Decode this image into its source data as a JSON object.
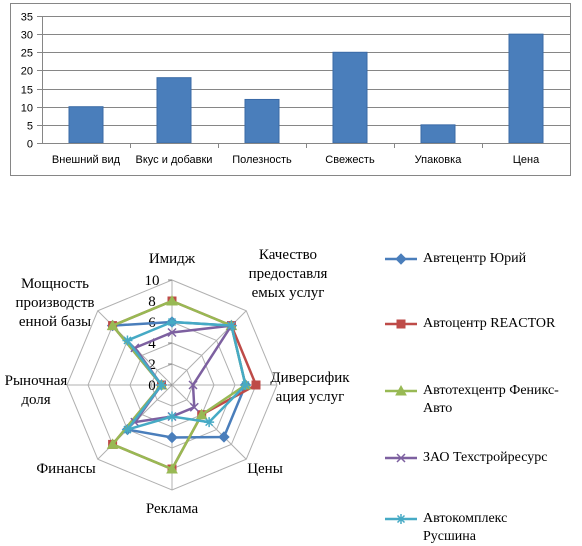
{
  "chart_data": [
    {
      "type": "bar",
      "categories": [
        "Внешний вид",
        "Вкус и добавки",
        "Полезность",
        "Свежесть",
        "Упаковка",
        "Цена"
      ],
      "values": [
        10,
        18,
        12,
        25,
        5,
        30
      ],
      "title": "",
      "xlabel": "",
      "ylabel": "",
      "ylim": [
        0,
        35
      ],
      "yticks": [
        0,
        5,
        10,
        15,
        20,
        25,
        30,
        35
      ],
      "grid": true,
      "legend": "none",
      "colors": {
        "bar": "#4a7ebb",
        "bar_edge": "#3a6aa6",
        "grid": "#868686",
        "axis": "#868686",
        "frame": "#868686"
      }
    },
    {
      "type": "radar",
      "categories": [
        "Имидж",
        "Качество предоставляемых услуг",
        "Диверсификация услуг",
        "Цены",
        "Реклама",
        "Финансы",
        "Рыночная доля",
        "Мощность производственной базы"
      ],
      "category_labels": [
        [
          "Имидж"
        ],
        [
          "Качество",
          "предоставля",
          "емых услуг"
        ],
        [
          "Диверсифик",
          "ация  услуг"
        ],
        [
          "Цены"
        ],
        [
          "Реклама"
        ],
        [
          "Финансы"
        ],
        [
          "Рыночная",
          "доля"
        ],
        [
          "Мощность",
          "производств",
          "енной базы"
        ]
      ],
      "rlim": [
        0,
        10
      ],
      "rticks": [
        0,
        2,
        4,
        6,
        8,
        10
      ],
      "series": [
        {
          "name": "Автецентр Юрий",
          "values": [
            6,
            8,
            7,
            7,
            5,
            6,
            1,
            8
          ],
          "color": "#4a7ebb",
          "marker": "diamond"
        },
        {
          "name": "Автоцентр REACTOR",
          "values": [
            8,
            8,
            8,
            4,
            8,
            8,
            1,
            8
          ],
          "color": "#be4b48",
          "marker": "square"
        },
        {
          "name": "Автотехцентр Феникс-Авто",
          "values": [
            8,
            8,
            7,
            4,
            8,
            8,
            1,
            8
          ],
          "color": "#98b954",
          "marker": "triangle"
        },
        {
          "name": "ЗАО Техстройресурс",
          "values": [
            5,
            8,
            2,
            3,
            3,
            5,
            1,
            5
          ],
          "color": "#7d60a0",
          "marker": "x"
        },
        {
          "name": "Автокомплекс Русшина",
          "values": [
            6,
            8,
            7,
            5,
            3,
            6,
            1,
            6
          ],
          "color": "#46aac5",
          "marker": "asterisk"
        }
      ],
      "grid": true,
      "legend": "right",
      "legend_labels": [
        "Автецентр Юрий",
        "Автоцентр REACTOR",
        "Автотехцентр Феникс-\nАвто",
        "ЗАО Техстройресурс",
        "Автокомплекс\nРусшина"
      ]
    }
  ]
}
